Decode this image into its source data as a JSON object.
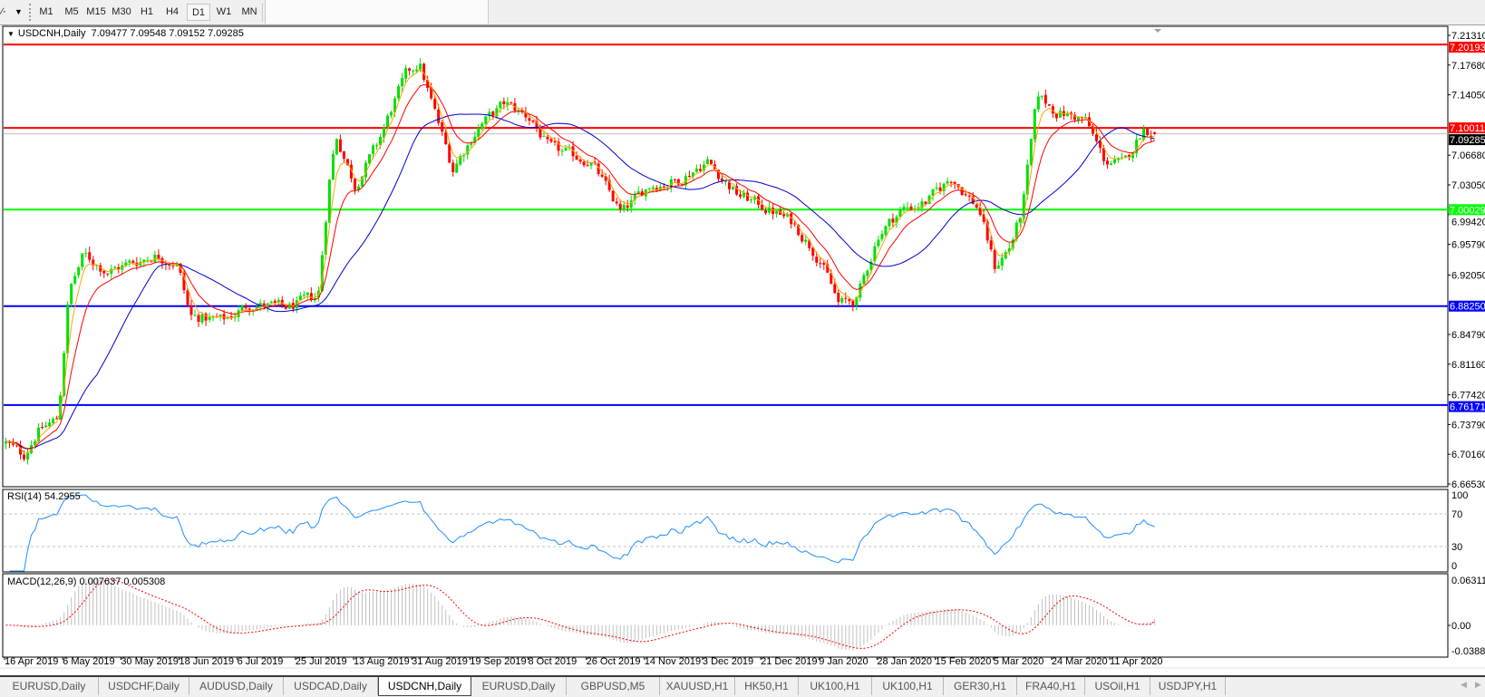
{
  "toolbar": {
    "timeframes": [
      "M1",
      "M5",
      "M15",
      "M30",
      "H1",
      "H4",
      "D1",
      "W1",
      "MN"
    ],
    "active_timeframe": "D1",
    "icons": {
      "drawing_tools": "line-tools-icon",
      "dropdown": "chevron-down-icon"
    }
  },
  "chart": {
    "symbol_label": "USDCNH,Daily",
    "ohlc": "7.09477 7.09548 7.09152 7.09285"
  },
  "chart_data": {
    "type": "candlestick",
    "symbol": "USDCNH",
    "timeframe": "Daily",
    "last_bar": {
      "open": 7.09477,
      "high": 7.09548,
      "low": 7.09152,
      "close": 7.09285
    },
    "colors": {
      "bull": "#00e000",
      "bear": "#ff0000",
      "ma_fast": "#ffa500",
      "ma_mid": "#ff0000",
      "ma_slow": "#0000cc",
      "rsi": "#1e90ff",
      "macd_hist": "#c0c0c0",
      "macd_signal": "#ff0000"
    },
    "price_axis": {
      "range": [
        6.6653,
        7.2131
      ],
      "ticks": [
        "7.21310",
        "7.17680",
        "7.14050",
        "7.06680",
        "7.03050",
        "6.99420",
        "6.95790",
        "6.92050",
        "6.84790",
        "6.81160",
        "6.77420",
        "6.73790",
        "6.70160",
        "6.66530"
      ]
    },
    "current_price": {
      "value": 7.09285,
      "label": "7.09285",
      "color": "#c0c0c0"
    },
    "horizontal_lines": [
      {
        "value": 7.20193,
        "label": "7.20193",
        "color": "#ff0000"
      },
      {
        "value": 7.10011,
        "label": "7.10011",
        "color": "#ff0000"
      },
      {
        "value": 7.00029,
        "label": "7.00029",
        "color": "#00ff00"
      },
      {
        "value": 6.8825,
        "label": "6.88250",
        "color": "#0000ff"
      },
      {
        "value": 6.76171,
        "label": "6.76171",
        "color": "#0000ff"
      }
    ],
    "date_ticks": [
      "16 Apr 2019",
      "6 May 2019",
      "30 May 2019",
      "18 Jun 2019",
      "6 Jul 2019",
      "25 Jul 2019",
      "13 Aug 2019",
      "31 Aug 2019",
      "19 Sep 2019",
      "8 Oct 2019",
      "26 Oct 2019",
      "14 Nov 2019",
      "3 Dec 2019",
      "21 Dec 2019",
      "9 Jan 2020",
      "28 Jan 2020",
      "15 Feb 2020",
      "5 Mar 2020",
      "24 Mar 2020",
      "11 Apr 2020"
    ],
    "close_path": [
      {
        "date": "16 Apr 2019",
        "close": 6.715
      },
      {
        "date": "22 Apr 2019",
        "close": 6.7
      },
      {
        "date": "27 Apr 2019",
        "close": 6.73
      },
      {
        "date": "4 May 2019",
        "close": 6.745
      },
      {
        "date": "8 May 2019",
        "close": 6.9
      },
      {
        "date": "14 May 2019",
        "close": 6.945
      },
      {
        "date": "24 May 2019",
        "close": 6.925
      },
      {
        "date": "2 Jun 2019",
        "close": 6.935
      },
      {
        "date": "10 Jun 2019",
        "close": 6.945
      },
      {
        "date": "17 Jun 2019",
        "close": 6.935
      },
      {
        "date": "21 Jun 2019",
        "close": 6.87
      },
      {
        "date": "1 Jul 2019",
        "close": 6.865
      },
      {
        "date": "10 Jul 2019",
        "close": 6.885
      },
      {
        "date": "22 Jul 2019",
        "close": 6.88
      },
      {
        "date": "1 Aug 2019",
        "close": 6.895
      },
      {
        "date": "5 Aug 2019",
        "close": 7.05
      },
      {
        "date": "7 Aug 2019",
        "close": 7.09
      },
      {
        "date": "13 Aug 2019",
        "close": 7.03
      },
      {
        "date": "20 Aug 2019",
        "close": 7.08
      },
      {
        "date": "25 Aug 2019",
        "close": 7.13
      },
      {
        "date": "29 Aug 2019",
        "close": 7.165
      },
      {
        "date": "2 Sep 2019",
        "close": 7.18
      },
      {
        "date": "7 Sep 2019",
        "close": 7.12
      },
      {
        "date": "13 Sep 2019",
        "close": 7.05
      },
      {
        "date": "21 Sep 2019",
        "close": 7.1
      },
      {
        "date": "30 Sep 2019",
        "close": 7.13
      },
      {
        "date": "9 Oct 2019",
        "close": 7.11
      },
      {
        "date": "14 Oct 2019",
        "close": 7.075
      },
      {
        "date": "27 Oct 2019",
        "close": 7.06
      },
      {
        "date": "6 Nov 2019",
        "close": 6.995
      },
      {
        "date": "15 Nov 2019",
        "close": 7.03
      },
      {
        "date": "24 Nov 2019",
        "close": 7.035
      },
      {
        "date": "4 Dec 2019",
        "close": 7.06
      },
      {
        "date": "13 Dec 2019",
        "close": 7.02
      },
      {
        "date": "21 Dec 2019",
        "close": 7.005
      },
      {
        "date": "31 Dec 2019",
        "close": 6.985
      },
      {
        "date": "9 Jan 2020",
        "close": 6.94
      },
      {
        "date": "15 Jan 2020",
        "close": 6.885
      },
      {
        "date": "21 Jan 2020",
        "close": 6.89
      },
      {
        "date": "28 Jan 2020",
        "close": 6.97
      },
      {
        "date": "4 Feb 2020",
        "close": 7.0
      },
      {
        "date": "12 Feb 2020",
        "close": 7.01
      },
      {
        "date": "20 Feb 2020",
        "close": 7.04
      },
      {
        "date": "29 Feb 2020",
        "close": 7.0
      },
      {
        "date": "5 Mar 2020",
        "close": 6.93
      },
      {
        "date": "10 Mar 2020",
        "close": 6.955
      },
      {
        "date": "14 Mar 2020",
        "close": 7.0
      },
      {
        "date": "19 Mar 2020",
        "close": 7.14
      },
      {
        "date": "25 Mar 2020",
        "close": 7.12
      },
      {
        "date": "3 Apr 2020",
        "close": 7.11
      },
      {
        "date": "9 Apr 2020",
        "close": 7.06
      },
      {
        "date": "15 Apr 2020",
        "close": 7.055
      },
      {
        "date": "21 Apr 2020",
        "close": 7.1
      },
      {
        "date": "25 Apr 2020",
        "close": 7.09285
      }
    ],
    "rsi": {
      "label": "RSI(14) 54.2955",
      "period": 14,
      "value": 54.2955,
      "levels": [
        70,
        30
      ],
      "range": [
        0,
        100
      ],
      "ticks": [
        "100",
        "70",
        "30",
        "0"
      ]
    },
    "macd": {
      "label": "MACD(12,26,9) 0.007637 0.005308",
      "fast": 12,
      "slow": 26,
      "signal": 9,
      "main": 0.007637,
      "signal_value": 0.005308,
      "range": [
        -0.038872,
        0.063113
      ],
      "ticks": [
        "0.063113",
        "0.00",
        "-0.038872"
      ]
    }
  },
  "tabs": [
    "EURUSD,Daily",
    "USDCHF,Daily",
    "AUDUSD,Daily",
    "USDCAD,Daily",
    "USDCNH,Daily",
    "EURUSD,Daily",
    "GBPUSD,M5",
    "XAUUSD,H1",
    "HK50,H1",
    "UK100,H1",
    "UK100,H1",
    "GER30,H1",
    "FRA40,H1",
    "USOil,H1",
    "USDJPY,H1"
  ],
  "active_tab": "USDCNH,Daily"
}
